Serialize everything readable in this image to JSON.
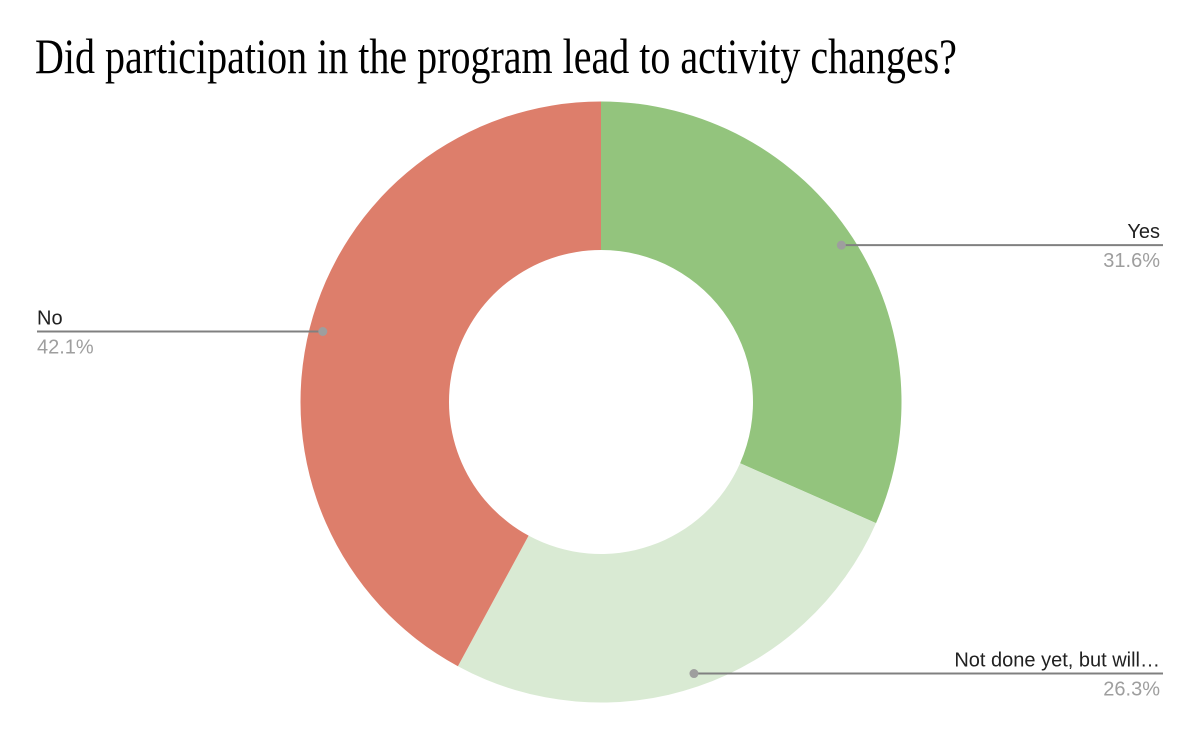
{
  "page": {
    "background": "#ffffff"
  },
  "chart_data": {
    "type": "pie",
    "subtype": "donut",
    "title": "Did participation in the program lead to activity changes?",
    "donut_hole_ratio": 0.5,
    "direction": "clockwise",
    "start_angle_deg": 0,
    "legend_position": "none",
    "slices": [
      {
        "label": "Yes",
        "value_pct": 31.6,
        "value_display": "31.6%",
        "color": "#93c47d",
        "label_side": "right"
      },
      {
        "label": "Not done yet, but will…",
        "value_pct": 26.3,
        "value_display": "26.3%",
        "color": "#d9ead3",
        "label_side": "right"
      },
      {
        "label": "No",
        "value_pct": 42.1,
        "value_display": "42.1%",
        "color": "#dd7e6b",
        "label_side": "left"
      }
    ],
    "label_text_color": "#212121",
    "percent_text_color": "#9e9e9e",
    "leader_line_color": "#808080",
    "leader_dot_color": "#9e9e9e"
  }
}
